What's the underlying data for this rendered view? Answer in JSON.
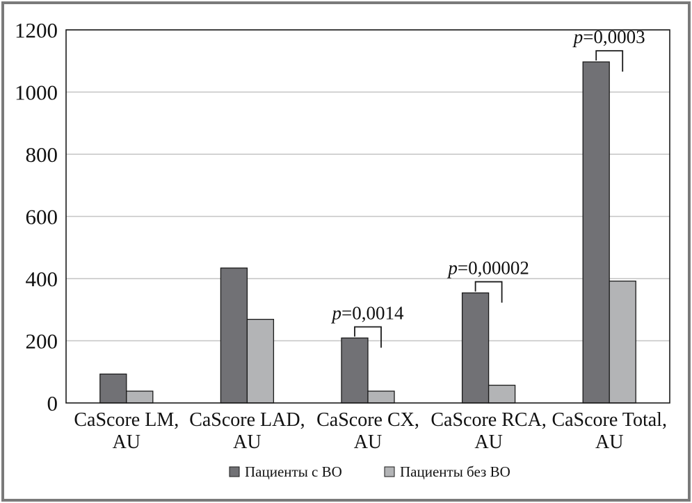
{
  "chart_data": {
    "type": "bar",
    "categories": [
      [
        "CaScore LM,",
        "AU"
      ],
      [
        "CaScore LAD,",
        "AU"
      ],
      [
        "CaScore CX,",
        "AU"
      ],
      [
        "CaScore RCA,",
        "AU"
      ],
      [
        "CaScore Total,",
        "AU"
      ]
    ],
    "series": [
      {
        "name": "Пациенты с ВО",
        "color": "#717175",
        "values": [
          93,
          434,
          209,
          354,
          1097
        ]
      },
      {
        "name": "Пациенты без ВО",
        "color": "#b3b4b6",
        "values": [
          38,
          269,
          38,
          57,
          392
        ]
      }
    ],
    "ylim": [
      0,
      1200
    ],
    "yticks": [
      0,
      200,
      400,
      600,
      800,
      1000,
      1200
    ],
    "grid": true,
    "legend": "bottom",
    "annotations": [
      {
        "category_index": 2,
        "p_symbol": "p",
        "p_value": "=0,0014"
      },
      {
        "category_index": 3,
        "p_symbol": "p",
        "p_value": "=0,00002"
      },
      {
        "category_index": 4,
        "p_symbol": "p",
        "p_value": "=0,0003"
      }
    ]
  }
}
